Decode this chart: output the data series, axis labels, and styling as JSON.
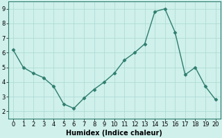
{
  "x": [
    0,
    1,
    2,
    3,
    4,
    5,
    6,
    7,
    8,
    9,
    10,
    11,
    12,
    13,
    14,
    15,
    16,
    17,
    18,
    19,
    20
  ],
  "y": [
    6.2,
    5.0,
    4.6,
    4.3,
    3.7,
    2.5,
    2.2,
    2.9,
    3.5,
    4.0,
    4.6,
    5.5,
    6.0,
    6.6,
    8.8,
    9.0,
    7.4,
    4.5,
    5.0,
    3.7,
    2.8
  ],
  "line_color": "#2e7d6e",
  "marker": "D",
  "marker_size": 2.5,
  "line_width": 1.0,
  "bg_color": "#cff0eb",
  "grid_color": "#aad8d0",
  "xlabel": "Humidex (Indice chaleur)",
  "ylim": [
    1.5,
    9.5
  ],
  "xlim": [
    -0.5,
    20.5
  ],
  "yticks": [
    2,
    3,
    4,
    5,
    6,
    7,
    8,
    9
  ],
  "xticks": [
    0,
    1,
    2,
    3,
    4,
    5,
    6,
    7,
    8,
    9,
    10,
    11,
    12,
    13,
    14,
    15,
    16,
    17,
    18,
    19,
    20
  ],
  "xlabel_fontsize": 7,
  "tick_fontsize": 6,
  "spine_color": "#2e7d6e"
}
